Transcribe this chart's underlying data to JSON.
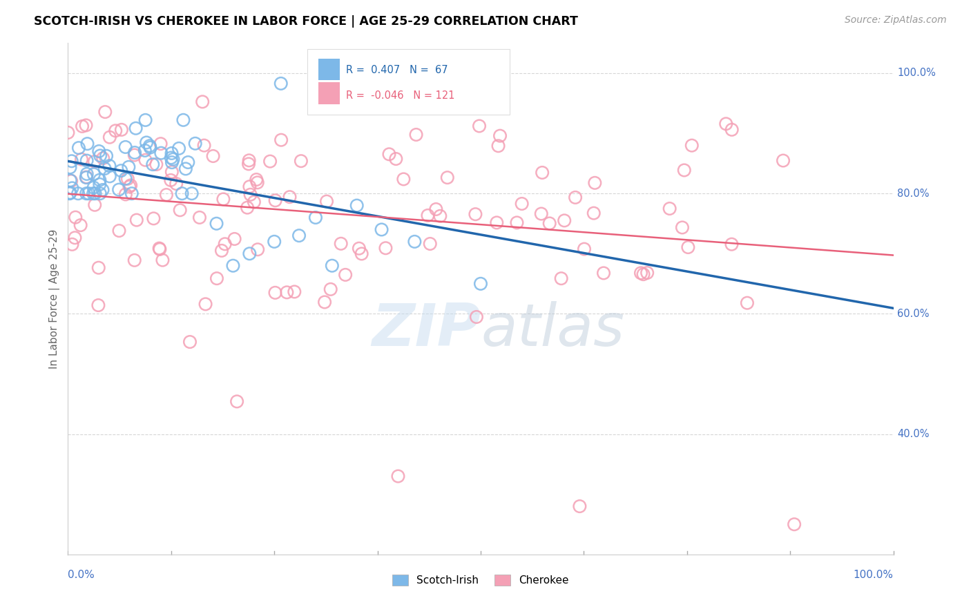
{
  "title": "SCOTCH-IRISH VS CHEROKEE IN LABOR FORCE | AGE 25-29 CORRELATION CHART",
  "source_text": "Source: ZipAtlas.com",
  "ylabel": "In Labor Force | Age 25-29",
  "legend_labels": [
    "Scotch-Irish",
    "Cherokee"
  ],
  "blue_color": "#7db8e8",
  "pink_color": "#f4a0b5",
  "blue_line_color": "#2166ac",
  "pink_line_color": "#e8607a",
  "R_blue": 0.407,
  "N_blue": 67,
  "R_pink": -0.046,
  "N_pink": 121,
  "watermark_color": "#c8ddf0",
  "axis_label_color": "#4472c4",
  "grid_color": "#cccccc",
  "ytick_positions": [
    1.0,
    0.8,
    0.6,
    0.4
  ],
  "ytick_labels": [
    "100.0%",
    "80.0%",
    "60.0%",
    "40.0%"
  ],
  "xlim": [
    0.0,
    1.0
  ],
  "ylim": [
    0.2,
    1.05
  ]
}
